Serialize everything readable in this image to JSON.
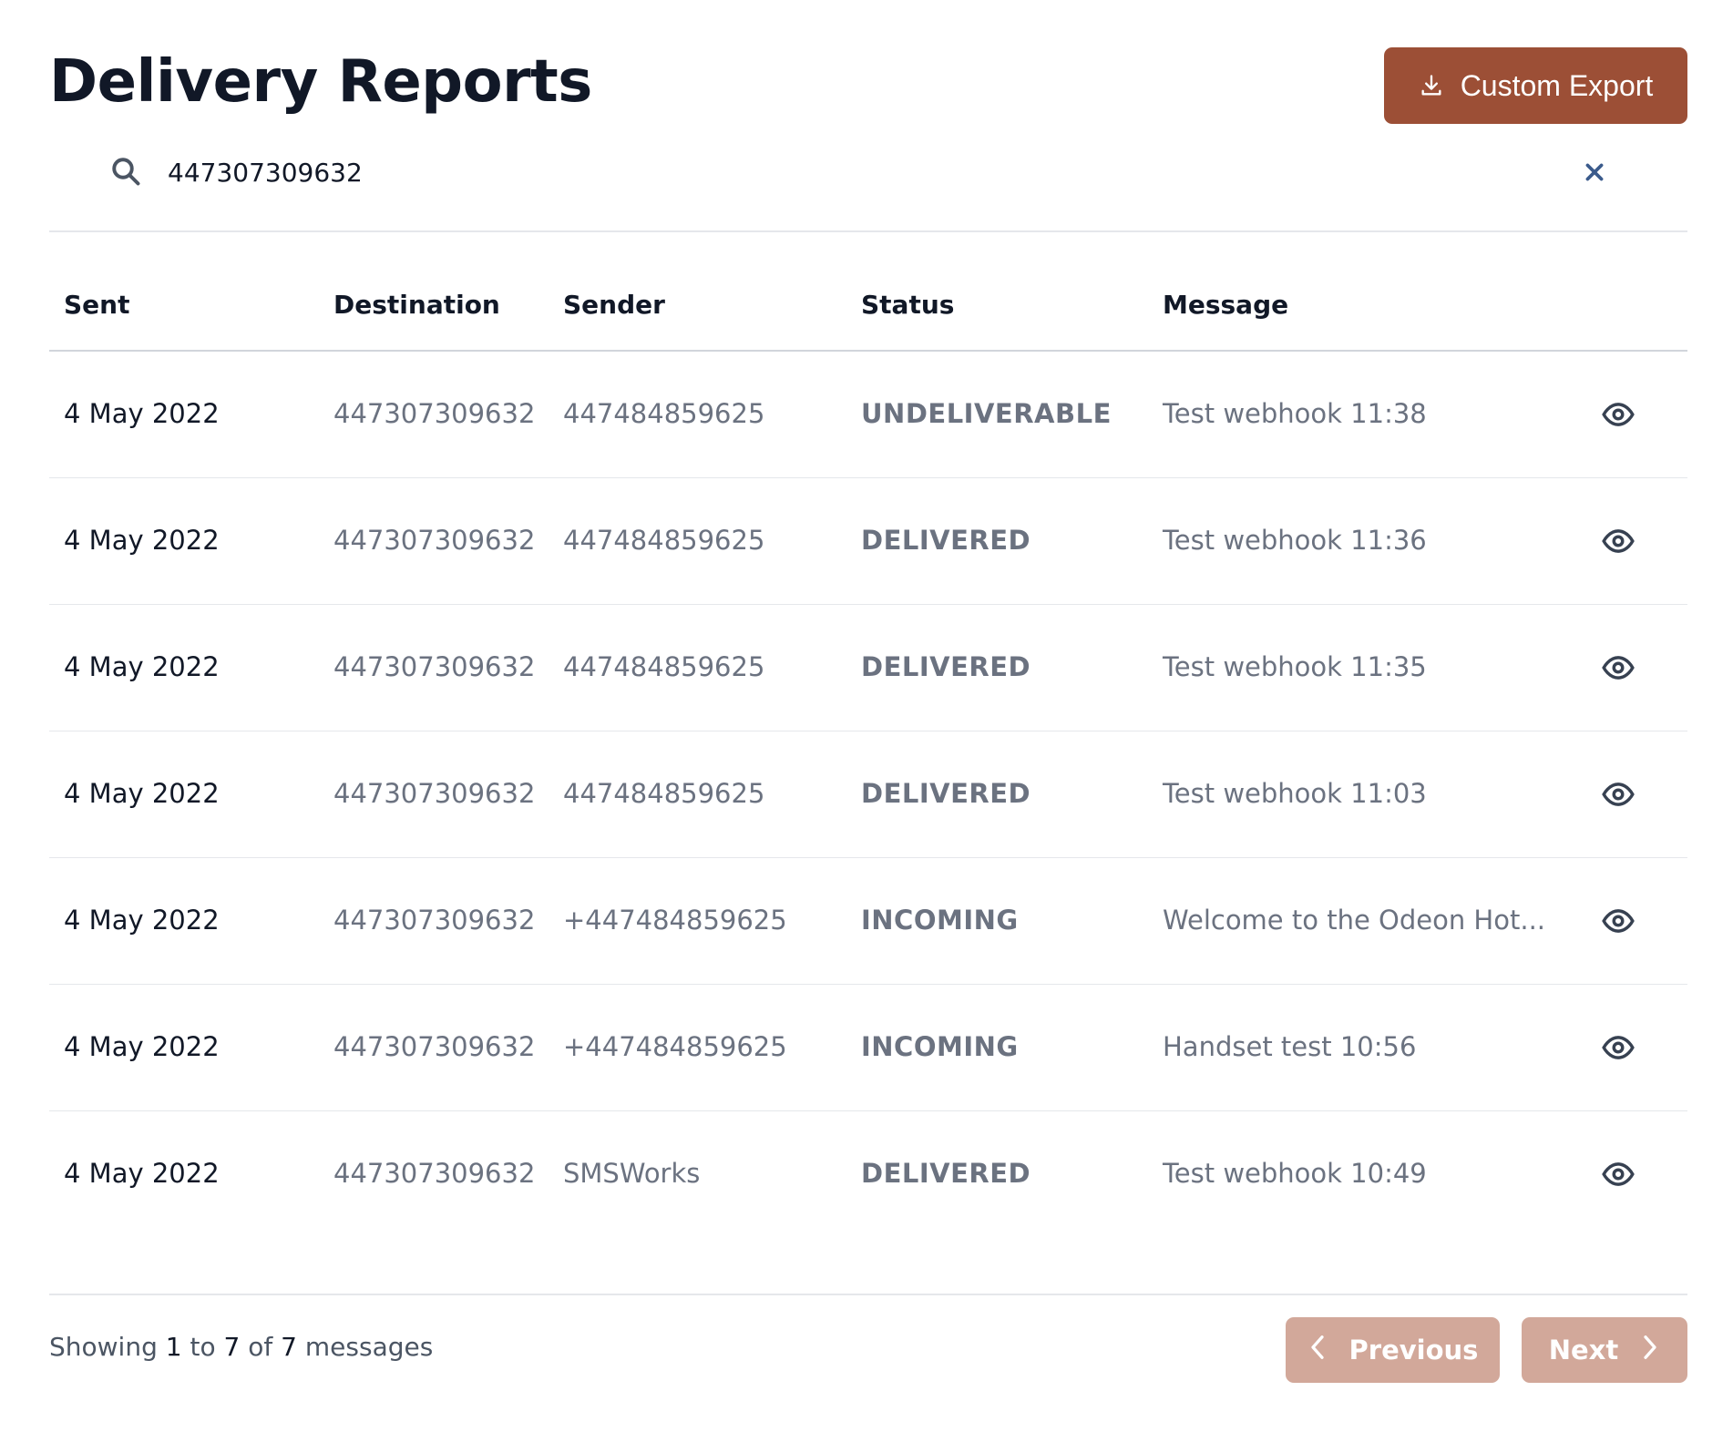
{
  "header": {
    "title": "Delivery Reports",
    "export_label": "Custom Export"
  },
  "search": {
    "value": "447307309632"
  },
  "table": {
    "columns": [
      "Sent",
      "Destination",
      "Sender",
      "Status",
      "Message"
    ],
    "rows": [
      {
        "sent": "4 May 2022",
        "destination": "447307309632",
        "sender": "447484859625",
        "status": "UNDELIVERABLE",
        "message": "Test webhook 11:38"
      },
      {
        "sent": "4 May 2022",
        "destination": "447307309632",
        "sender": "447484859625",
        "status": "DELIVERED",
        "message": "Test webhook 11:36"
      },
      {
        "sent": "4 May 2022",
        "destination": "447307309632",
        "sender": "447484859625",
        "status": "DELIVERED",
        "message": "Test webhook 11:35"
      },
      {
        "sent": "4 May 2022",
        "destination": "447307309632",
        "sender": "447484859625",
        "status": "DELIVERED",
        "message": "Test webhook 11:03"
      },
      {
        "sent": "4 May 2022",
        "destination": "447307309632",
        "sender": "+447484859625",
        "status": "INCOMING",
        "message": "Welcome to the Odeon Hot..."
      },
      {
        "sent": "4 May 2022",
        "destination": "447307309632",
        "sender": "+447484859625",
        "status": "INCOMING",
        "message": "Handset test 10:56"
      },
      {
        "sent": "4 May 2022",
        "destination": "447307309632",
        "sender": "SMSWorks",
        "status": "DELIVERED",
        "message": "Test webhook 10:49"
      }
    ]
  },
  "footer": {
    "showing_prefix": "Showing",
    "from": "1",
    "to_word": "to",
    "to": "7",
    "of_word": "of",
    "total": "7",
    "suffix": "messages",
    "previous_label": "Previous",
    "next_label": "Next"
  },
  "colors": {
    "accent": "#9c4f36",
    "pager_disabled": "#d2a89a",
    "clear_icon": "#3b5b8c"
  },
  "icons": {
    "export": "download-icon",
    "search": "search-icon",
    "clear": "close-icon",
    "row_action": "eye-icon",
    "previous": "chevron-left-icon",
    "next": "chevron-right-icon"
  }
}
